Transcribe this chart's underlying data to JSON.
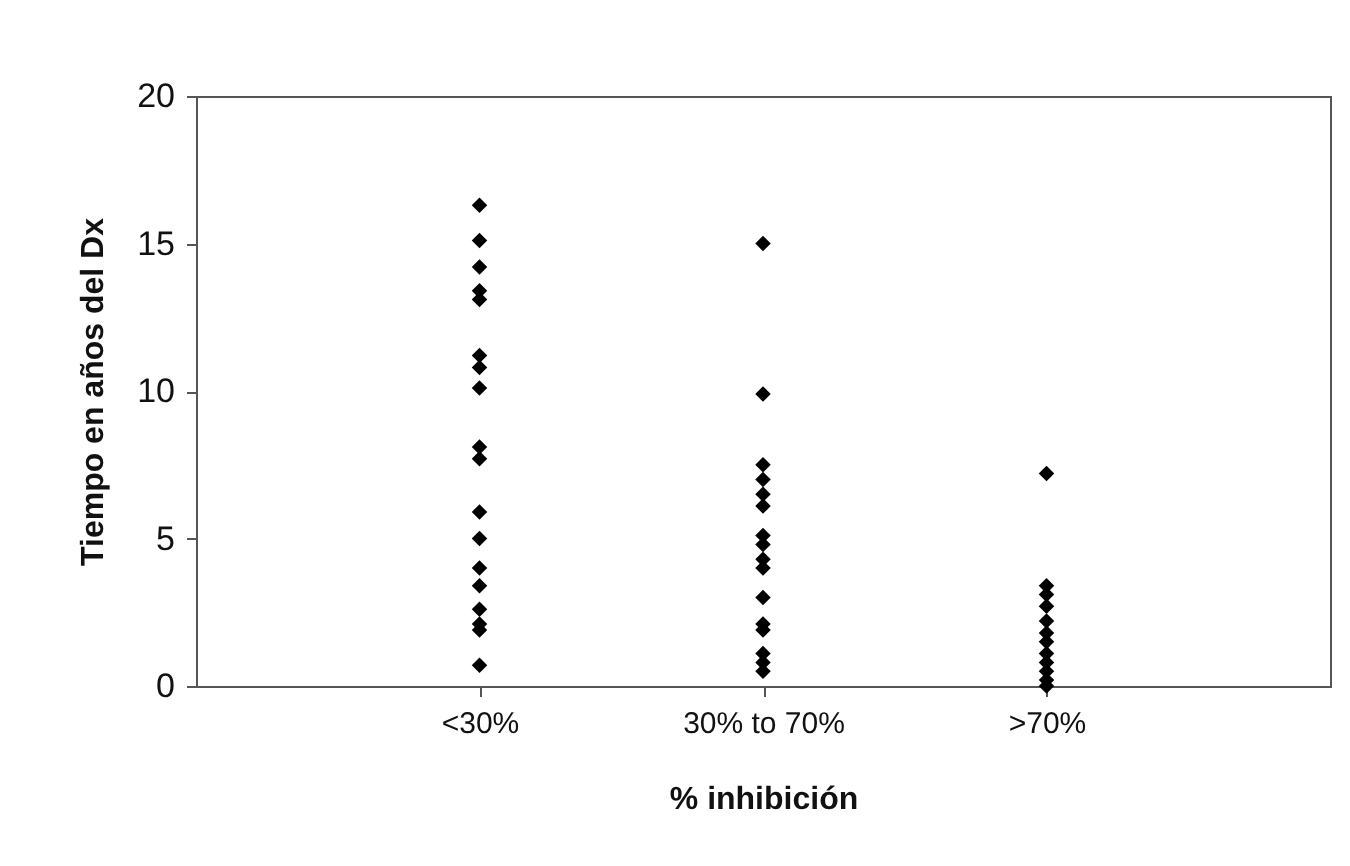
{
  "chart_data": {
    "type": "scatter",
    "xlabel": "% inhibición",
    "ylabel": "Tiempo en años del Dx",
    "categories": [
      "<30%",
      "30% to 70%",
      ">70%"
    ],
    "series": [
      {
        "color": "#000000",
        "x": [
          "<30%",
          "<30%",
          "<30%",
          "<30%",
          "<30%",
          "<30%",
          "<30%",
          "<30%",
          "<30%",
          "<30%",
          "<30%",
          "<30%",
          "<30%",
          "<30%",
          "<30%",
          "<30%",
          "<30%",
          "<30%",
          "30% to 70%",
          "30% to 70%",
          "30% to 70%",
          "30% to 70%",
          "30% to 70%",
          "30% to 70%",
          "30% to 70%",
          "30% to 70%",
          "30% to 70%",
          "30% to 70%",
          "30% to 70%",
          "30% to 70%",
          "30% to 70%",
          "30% to 70%",
          "30% to 70%",
          "30% to 70%",
          ">70%",
          ">70%",
          ">70%",
          ">70%",
          ">70%",
          ">70%",
          ">70%",
          ">70%",
          ">70%",
          ">70%",
          ">70%",
          ">70%"
        ],
        "values": [
          16.3,
          15.1,
          14.2,
          13.4,
          13.1,
          11.2,
          10.8,
          10.1,
          8.1,
          7.7,
          5.9,
          5.0,
          4.0,
          3.4,
          2.6,
          2.1,
          1.9,
          0.7,
          15.0,
          9.9,
          7.5,
          7.0,
          6.5,
          6.1,
          5.1,
          4.8,
          4.3,
          4.0,
          3.0,
          2.1,
          1.9,
          1.1,
          0.8,
          0.5,
          7.2,
          3.4,
          3.1,
          2.7,
          2.2,
          1.8,
          1.5,
          1.1,
          0.8,
          0.5,
          0.2,
          0.0
        ]
      }
    ],
    "ylim": [
      0,
      20
    ],
    "yticks": [
      0,
      5,
      10,
      15,
      20
    ],
    "grid": false,
    "legend": false,
    "marker": "diamond"
  }
}
